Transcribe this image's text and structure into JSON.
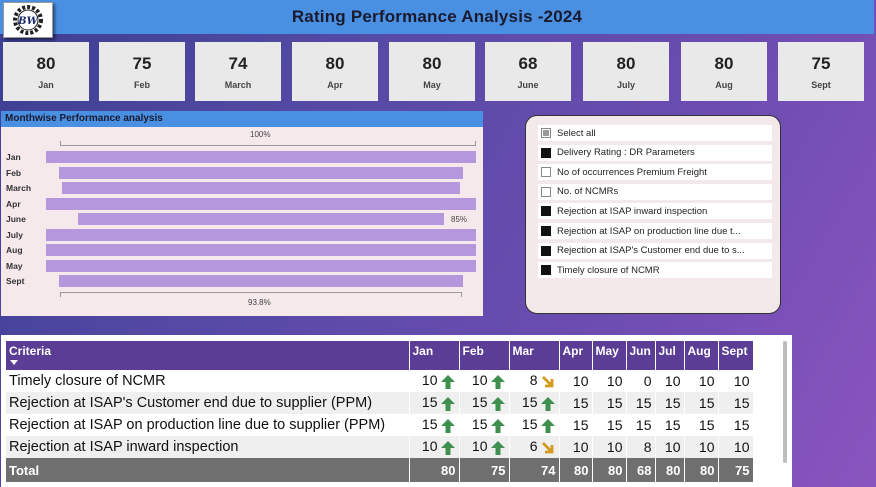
{
  "header": {
    "title": "Rating Performance Analysis -2024",
    "logo_text": "BW"
  },
  "kpis": [
    {
      "value": "80",
      "label": "Jan"
    },
    {
      "value": "75",
      "label": "Feb"
    },
    {
      "value": "74",
      "label": "March"
    },
    {
      "value": "80",
      "label": "Apr"
    },
    {
      "value": "80",
      "label": "May"
    },
    {
      "value": "68",
      "label": "June"
    },
    {
      "value": "80",
      "label": "July"
    },
    {
      "value": "80",
      "label": "Aug"
    },
    {
      "value": "75",
      "label": "Sept"
    }
  ],
  "chart_data": {
    "type": "bar",
    "title": "Monthwise Performance analysis",
    "categories": [
      "Jan",
      "Feb",
      "March",
      "Apr",
      "June",
      "July",
      "Aug",
      "May",
      "Sept"
    ],
    "values": [
      100,
      93.8,
      92.5,
      100,
      85,
      100,
      100,
      100,
      93.8
    ],
    "annotations": {
      "top": "100%",
      "bottom": "93.8%",
      "june": "85%"
    }
  },
  "slicer": {
    "items": [
      {
        "label": "Select all",
        "state": "partial"
      },
      {
        "label": "Delivery Rating : DR Parameters",
        "state": "on"
      },
      {
        "label": "No of occurrences Premium Freight",
        "state": "off"
      },
      {
        "label": "No. of NCMRs",
        "state": "off"
      },
      {
        "label": "Rejection at ISAP inward inspection",
        "state": "on"
      },
      {
        "label": "Rejection at ISAP on production line due t...",
        "state": "on"
      },
      {
        "label": "Rejection at ISAP's Customer end due to s...",
        "state": "on"
      },
      {
        "label": "Timely closure of NCMR",
        "state": "on"
      }
    ]
  },
  "table": {
    "headers": [
      "Criteria",
      "Jan",
      "Feb",
      "Mar",
      "Apr",
      "May",
      "Jun",
      "Jul",
      "Aug",
      "Sept"
    ],
    "rows": [
      {
        "criteria": "Timely closure of NCMR",
        "values": [
          "10",
          "10",
          "8",
          "10",
          "10",
          "0",
          "10",
          "10",
          "10"
        ],
        "arrows": [
          "up",
          "up",
          "down",
          "",
          "",
          "",
          "",
          "",
          ""
        ]
      },
      {
        "criteria": "Rejection at ISAP's Customer end due to supplier (PPM)",
        "values": [
          "15",
          "15",
          "15",
          "15",
          "15",
          "15",
          "15",
          "15",
          "15"
        ],
        "arrows": [
          "up",
          "up",
          "up",
          "",
          "",
          "",
          "",
          "",
          ""
        ]
      },
      {
        "criteria": "Rejection at ISAP on production line due to supplier (PPM)",
        "values": [
          "15",
          "15",
          "15",
          "15",
          "15",
          "15",
          "15",
          "15",
          "15"
        ],
        "arrows": [
          "up",
          "up",
          "up",
          "",
          "",
          "",
          "",
          "",
          ""
        ]
      },
      {
        "criteria": "Rejection at ISAP inward inspection",
        "values": [
          "10",
          "10",
          "6",
          "10",
          "10",
          "8",
          "10",
          "10",
          "10"
        ],
        "arrows": [
          "up",
          "up",
          "down",
          "",
          "",
          "",
          "",
          "",
          ""
        ]
      }
    ],
    "total": {
      "label": "Total",
      "values": [
        "80",
        "75",
        "74",
        "80",
        "80",
        "68",
        "80",
        "80",
        "75"
      ]
    },
    "arrow_colors": {
      "up": "#3f8f4e",
      "down": "#d49a1a"
    }
  }
}
